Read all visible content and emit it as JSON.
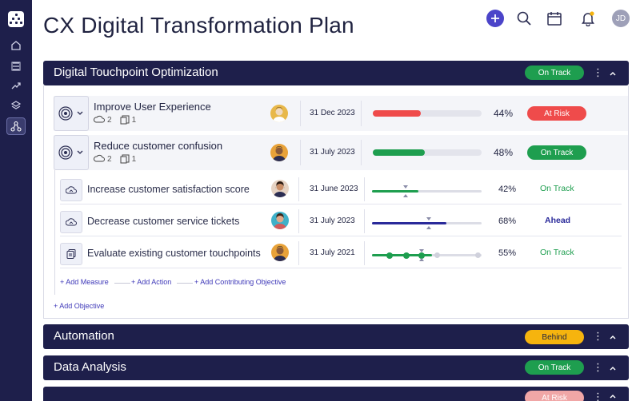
{
  "page": {
    "title": "CX Digital Transformation Plan"
  },
  "header": {
    "user_initials": "JD",
    "icons": [
      "plus-icon",
      "search-icon",
      "calendar-icon",
      "bell-icon"
    ]
  },
  "sidebar": {
    "icons": [
      "logo",
      "home-icon",
      "list-icon",
      "trend-icon",
      "layers-icon",
      "network-icon"
    ]
  },
  "colors": {
    "navy": "#1e1f4b",
    "on_track": "#1e9e4f",
    "behind": "#f6b40e",
    "at_risk": "#ef4b4b",
    "ahead": "#2a2a9a"
  },
  "sections": [
    {
      "title": "Digital Touchpoint Optimization",
      "status": "On Track",
      "objectives": [
        {
          "title": "Improve User Experience",
          "comments": "2",
          "files": "1",
          "date": "31 Dec 2023",
          "progress_label": "44%",
          "progress": 44,
          "status": "At Risk"
        },
        {
          "title": "Reduce customer confusion",
          "comments": "2",
          "files": "1",
          "date": "31 July 2023",
          "progress_label": "48%",
          "progress": 48,
          "status": "On Track"
        }
      ],
      "measures": [
        {
          "title": "Increase customer satisfaction score",
          "date": "31 June 2023",
          "progress_label": "42%",
          "progress": 42,
          "status": "On Track"
        },
        {
          "title": "Decrease customer service tickets",
          "date": "31 July 2023",
          "progress_label": "68%",
          "progress": 68,
          "status": "Ahead"
        },
        {
          "title": "Evaluate existing customer touchpoints",
          "date": "31 July 2021",
          "progress_label": "55%",
          "progress": 55,
          "status": "On Track"
        }
      ],
      "links": {
        "add_measure": "+ Add Measure",
        "add_action": "+ Add Action",
        "add_contributing": "+ Add Contributing Objective",
        "add_objective": "+ Add Objective"
      }
    },
    {
      "title": "Automation",
      "status": "Behind"
    },
    {
      "title": "Data Analysis",
      "status": "On Track"
    },
    {
      "title": "",
      "status": "At Risk"
    }
  ]
}
